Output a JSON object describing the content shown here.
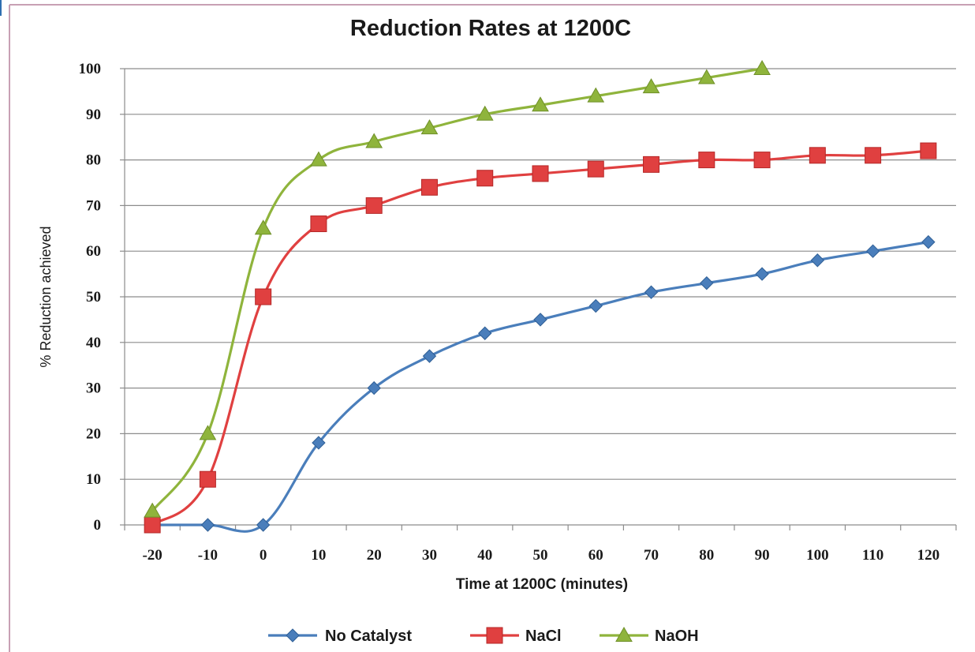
{
  "chart_data": {
    "type": "line",
    "title": "Reduction Rates at 1200C",
    "xlabel": "Time at 1200C (minutes)",
    "ylabel": "% Reduction achieved",
    "categories": [
      "-20",
      "-10",
      "0",
      "10",
      "20",
      "30",
      "40",
      "50",
      "60",
      "70",
      "80",
      "90",
      "100",
      "110",
      "120"
    ],
    "ylim": [
      0,
      100
    ],
    "yticks": [
      "0",
      "10",
      "20",
      "30",
      "40",
      "50",
      "60",
      "70",
      "80",
      "90",
      "100"
    ],
    "grid": true,
    "legend_position": "bottom",
    "series": [
      {
        "name": "No Catalyst",
        "color": "#4a7ebb",
        "marker": "diamond",
        "values": [
          0,
          0,
          0,
          18,
          30,
          37,
          42,
          45,
          48,
          51,
          53,
          55,
          58,
          60,
          62
        ]
      },
      {
        "name": "NaCl",
        "color": "#e04040",
        "marker": "square",
        "values": [
          0,
          10,
          50,
          66,
          70,
          74,
          76,
          77,
          78,
          79,
          80,
          80,
          81,
          81,
          82
        ]
      },
      {
        "name": "NaOH",
        "color": "#8fb43c",
        "marker": "triangle",
        "values": [
          3,
          20,
          65,
          80,
          84,
          87,
          90,
          92,
          94,
          96,
          98,
          100,
          null,
          null,
          null
        ]
      }
    ]
  }
}
